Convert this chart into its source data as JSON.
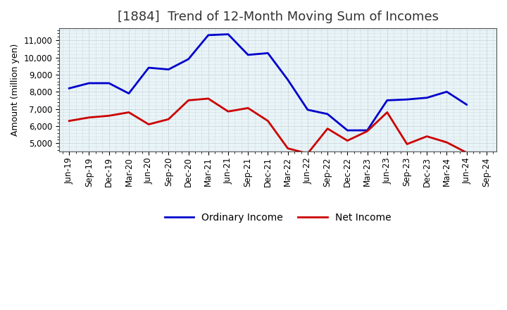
{
  "title": "[1884]  Trend of 12-Month Moving Sum of Incomes",
  "ylabel": "Amount (million yen)",
  "x_labels": [
    "Jun-19",
    "Sep-19",
    "Dec-19",
    "Mar-20",
    "Jun-20",
    "Sep-20",
    "Dec-20",
    "Mar-21",
    "Jun-21",
    "Sep-21",
    "Dec-21",
    "Mar-22",
    "Jun-22",
    "Sep-22",
    "Dec-22",
    "Mar-23",
    "Jun-23",
    "Sep-23",
    "Dec-23",
    "Mar-24",
    "Jun-24",
    "Sep-24"
  ],
  "ordinary_income": [
    8200,
    8500,
    8500,
    7900,
    9400,
    9300,
    9900,
    11300,
    11350,
    10150,
    10250,
    8700,
    6950,
    6700,
    5750,
    5750,
    7500,
    7550,
    7650,
    8000,
    7250,
    null
  ],
  "net_income": [
    6300,
    6500,
    6600,
    6800,
    6100,
    6400,
    7500,
    7600,
    6850,
    7050,
    6300,
    4700,
    4400,
    5850,
    5150,
    5700,
    6800,
    4950,
    5400,
    5050,
    4450,
    null
  ],
  "ordinary_income_color": "#0000cc",
  "net_income_color": "#cc0000",
  "background_color": "#ffffff",
  "plot_bg_color": "#e8f4f8",
  "grid_color": "#999999",
  "ylim": [
    4500,
    11700
  ],
  "yticks": [
    5000,
    6000,
    7000,
    8000,
    9000,
    10000,
    11000
  ],
  "legend_ordinary": "Ordinary Income",
  "legend_net": "Net Income",
  "title_fontsize": 13,
  "axis_fontsize": 9,
  "tick_fontsize": 8.5,
  "title_color": "#333333"
}
